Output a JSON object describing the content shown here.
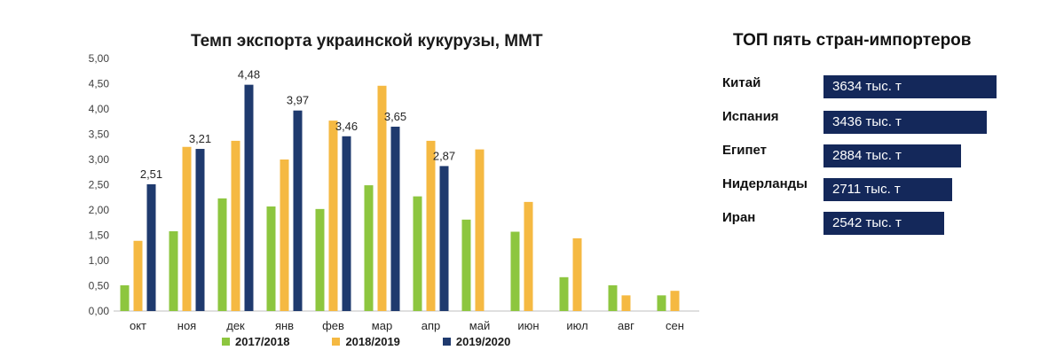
{
  "chart_data": {
    "type": "bar",
    "title": "Темп экспорта украинской кукурузы, ММТ",
    "categories": [
      "окт",
      "ноя",
      "дек",
      "янв",
      "фев",
      "мар",
      "апр",
      "май",
      "июн",
      "июл",
      "авг",
      "сен"
    ],
    "series": [
      {
        "name": "2017/2018",
        "color": "#8dc63f",
        "values": [
          0.51,
          1.58,
          2.23,
          2.07,
          2.02,
          2.49,
          2.27,
          1.81,
          1.57,
          0.67,
          0.51,
          0.31
        ]
      },
      {
        "name": "2018/2019",
        "color": "#f5b942",
        "values": [
          1.39,
          3.25,
          3.37,
          3.0,
          3.77,
          4.46,
          3.37,
          3.2,
          2.16,
          1.44,
          0.31,
          0.4
        ]
      },
      {
        "name": "2019/2020",
        "color": "#1f3a6e",
        "values": [
          2.51,
          3.21,
          4.48,
          3.97,
          3.46,
          3.65,
          2.87,
          null,
          null,
          null,
          null,
          null
        ]
      }
    ],
    "data_labels": [
      "2,51",
      "3,21",
      "4,48",
      "3,97",
      "3,46",
      "3,65",
      "2,87"
    ],
    "y_tick_labels": [
      "0,00",
      "0,50",
      "1,00",
      "1,50",
      "2,00",
      "2,50",
      "3,00",
      "3,50",
      "4,00",
      "4,50",
      "5,00"
    ],
    "ylim": [
      0,
      5
    ],
    "legend_position": "bottom",
    "grid": false
  },
  "importers": {
    "title": "ТОП пять стран-импортеров",
    "rows": [
      {
        "country": "Китай",
        "value": "3634 тыс. т",
        "amount": 3634
      },
      {
        "country": "Испания",
        "value": "3436 тыс. т",
        "amount": 3436
      },
      {
        "country": "Египет",
        "value": "2884 тыс. т",
        "amount": 2884
      },
      {
        "country": "Нидерланды",
        "value": "2711 тыс. т",
        "amount": 2711
      },
      {
        "country": "Иран",
        "value": "2542 тыс. т",
        "amount": 2542
      }
    ]
  }
}
